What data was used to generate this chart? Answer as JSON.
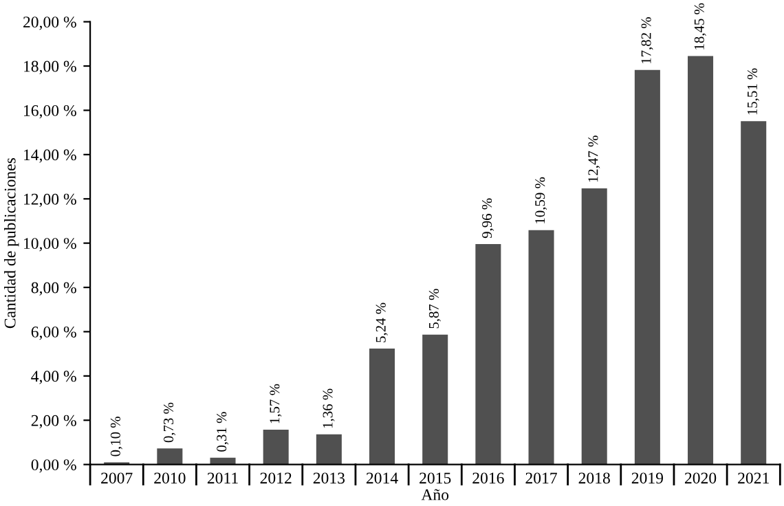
{
  "chart_data": {
    "type": "bar",
    "xlabel": "Año",
    "ylabel": "Cantidad de publicaciones",
    "categories": [
      "2007",
      "2010",
      "2011",
      "2012",
      "2013",
      "2014",
      "2015",
      "2016",
      "2017",
      "2018",
      "2019",
      "2020",
      "2021"
    ],
    "values": [
      0.1,
      0.73,
      0.31,
      1.57,
      1.36,
      5.24,
      5.87,
      9.96,
      10.59,
      12.47,
      17.82,
      18.45,
      15.51
    ],
    "value_labels": [
      "0,10 %",
      "0,73 %",
      "0,31 %",
      "1,57 %",
      "1,36 %",
      "5,24 %",
      "5,87 %",
      "9,96 %",
      "10,59 %",
      "12,47 %",
      "17,82 %",
      "18,45 %",
      "15,51 %"
    ],
    "color": "#505050",
    "ylim": [
      0,
      20
    ],
    "yticks": [
      {
        "value": 0,
        "label": "0,00 %"
      },
      {
        "value": 2,
        "label": "2,00 %"
      },
      {
        "value": 4,
        "label": "4,00 %"
      },
      {
        "value": 6,
        "label": "6,00 %"
      },
      {
        "value": 8,
        "label": "8,00 %"
      },
      {
        "value": 10,
        "label": "10,00 %"
      },
      {
        "value": 12,
        "label": "12,00 %"
      },
      {
        "value": 14,
        "label": "14,00 %"
      },
      {
        "value": 16,
        "label": "16,00 %"
      },
      {
        "value": 18,
        "label": "18,00 %"
      },
      {
        "value": 20,
        "label": "20,00 %"
      }
    ],
    "grid": false
  }
}
